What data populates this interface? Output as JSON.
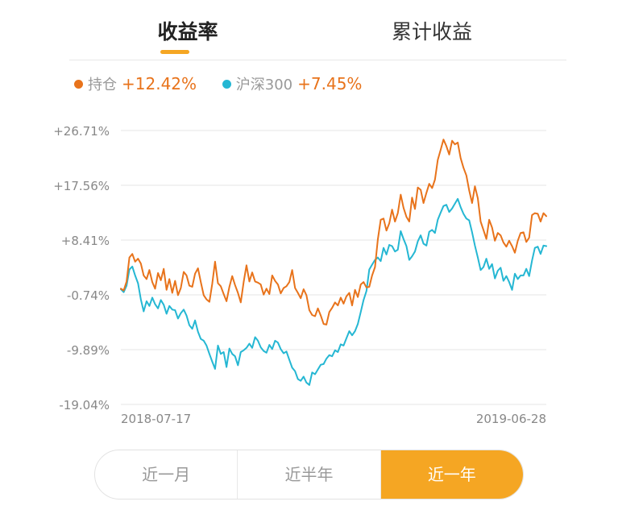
{
  "tabs": [
    {
      "label": "收益率",
      "active": true
    },
    {
      "label": "累计收益",
      "active": false
    }
  ],
  "legend": [
    {
      "name": "持仓",
      "value": "+12.42%",
      "color": "#e8731b"
    },
    {
      "name": "沪深300",
      "value": "+7.45%",
      "color": "#25b7d3"
    }
  ],
  "range_buttons": [
    {
      "label": "近一月",
      "active": false
    },
    {
      "label": "近半年",
      "active": false
    },
    {
      "label": "近一年",
      "active": true
    }
  ],
  "colors": {
    "accent": "#f5a623",
    "holding": "#e8731b",
    "index": "#25b7d3",
    "grid": "#e6e6e6",
    "axis_text": "#888888"
  },
  "chart_data": {
    "type": "line",
    "x_start": "2018-07-17",
    "x_end": "2019-06-28",
    "x_tick_labels": [
      "2018-07-17",
      "2019-06-28"
    ],
    "y_tick_labels": [
      "+26.71%",
      "+17.56%",
      "+8.41%",
      "-0.74%",
      "-9.89%",
      "-19.04%"
    ],
    "y_ticks": [
      26.71,
      17.56,
      8.41,
      -0.74,
      -9.89,
      -19.04
    ],
    "ylim": [
      -19.04,
      26.71
    ],
    "grid": true,
    "legend_position": "top-left",
    "series": [
      {
        "name": "持仓",
        "color": "#e8731b",
        "final": 12.42,
        "values": [
          0.3,
          0.0,
          1.5,
          5.5,
          6.1,
          4.8,
          5.3,
          4.5,
          2.5,
          1.9,
          3.4,
          1.4,
          0.3,
          2.9,
          1.7,
          3.6,
          0.1,
          1.9,
          -0.4,
          1.6,
          -0.8,
          0.4,
          3.1,
          2.5,
          0.8,
          0.6,
          2.8,
          3.7,
          1.4,
          -0.8,
          -1.5,
          -1.9,
          1.1,
          4.8,
          1.2,
          0.7,
          -0.6,
          -1.8,
          0.6,
          2.4,
          0.9,
          -0.4,
          -2.0,
          1.4,
          4.2,
          1.5,
          3.0,
          1.5,
          1.3,
          1.0,
          -0.7,
          0.3,
          -0.6,
          2.5,
          1.6,
          1.0,
          -0.5,
          0.4,
          0.7,
          1.4,
          3.4,
          0.4,
          -0.4,
          -1.3,
          0.2,
          -0.8,
          -3.3,
          -4.1,
          -4.3,
          -3.0,
          -4.2,
          -5.6,
          -5.7,
          -3.6,
          -2.9,
          -2.0,
          -2.5,
          -1.2,
          -2.2,
          -1.0,
          -0.4,
          -2.5,
          0.1,
          -1.1,
          1.0,
          1.4,
          0.5,
          0.6,
          2.5,
          3.9,
          8.5,
          11.8,
          12.0,
          10.0,
          11.2,
          13.5,
          11.5,
          12.9,
          16.0,
          13.8,
          12.3,
          11.5,
          15.5,
          13.6,
          17.2,
          16.8,
          14.6,
          16.3,
          17.8,
          17.1,
          18.5,
          21.8,
          23.5,
          25.2,
          24.1,
          22.7,
          25.0,
          24.4,
          24.7,
          22.1,
          20.5,
          19.2,
          16.7,
          14.6,
          17.4,
          15.4,
          11.5,
          10.1,
          8.6,
          11.8,
          10.5,
          8.3,
          9.6,
          9.2,
          8.0,
          7.3,
          8.3,
          7.4,
          6.3,
          8.3,
          9.6,
          9.7,
          8.1,
          8.8,
          12.6,
          12.9,
          12.8,
          11.5,
          12.9,
          12.4
        ]
      },
      {
        "name": "沪深300",
        "color": "#25b7d3",
        "final": 7.45,
        "values": [
          0.2,
          -0.3,
          0.8,
          3.5,
          4.0,
          2.5,
          1.2,
          -1.5,
          -3.5,
          -1.8,
          -2.6,
          -1.2,
          -2.3,
          -3.0,
          -1.6,
          -2.4,
          -3.9,
          -2.6,
          -3.2,
          -3.3,
          -4.7,
          -3.8,
          -3.2,
          -4.2,
          -5.8,
          -6.4,
          -5.0,
          -6.9,
          -8.1,
          -8.4,
          -9.2,
          -10.6,
          -11.9,
          -13.1,
          -9.2,
          -10.6,
          -10.3,
          -12.8,
          -9.7,
          -10.6,
          -11.0,
          -12.5,
          -10.3,
          -10.0,
          -9.6,
          -8.9,
          -9.6,
          -7.8,
          -8.4,
          -9.5,
          -10.1,
          -10.4,
          -9.1,
          -9.8,
          -8.4,
          -8.7,
          -9.8,
          -10.5,
          -10.2,
          -11.6,
          -12.9,
          -13.5,
          -14.8,
          -15.1,
          -14.4,
          -15.4,
          -15.8,
          -13.7,
          -14.0,
          -13.2,
          -12.4,
          -12.3,
          -11.4,
          -10.8,
          -11.0,
          -10.0,
          -10.3,
          -9.0,
          -9.2,
          -8.0,
          -6.8,
          -7.5,
          -6.8,
          -5.6,
          -3.6,
          -1.6,
          -0.1,
          3.5,
          4.3,
          5.1,
          5.5,
          4.9,
          7.1,
          6.0,
          7.6,
          7.4,
          6.5,
          6.8,
          9.9,
          8.6,
          7.4,
          5.1,
          5.7,
          6.5,
          8.2,
          9.2,
          7.8,
          7.5,
          9.8,
          10.1,
          9.6,
          11.8,
          13.0,
          14.1,
          14.3,
          13.1,
          13.7,
          14.5,
          15.3,
          13.9,
          12.8,
          12.0,
          11.7,
          9.7,
          7.5,
          5.5,
          3.4,
          3.9,
          5.3,
          3.6,
          4.4,
          2.0,
          3.3,
          3.8,
          1.6,
          2.4,
          1.4,
          0.1,
          2.8,
          1.9,
          2.5,
          2.5,
          3.6,
          2.4,
          5.0,
          7.1,
          7.3,
          6.1,
          7.5,
          7.4
        ]
      }
    ]
  }
}
